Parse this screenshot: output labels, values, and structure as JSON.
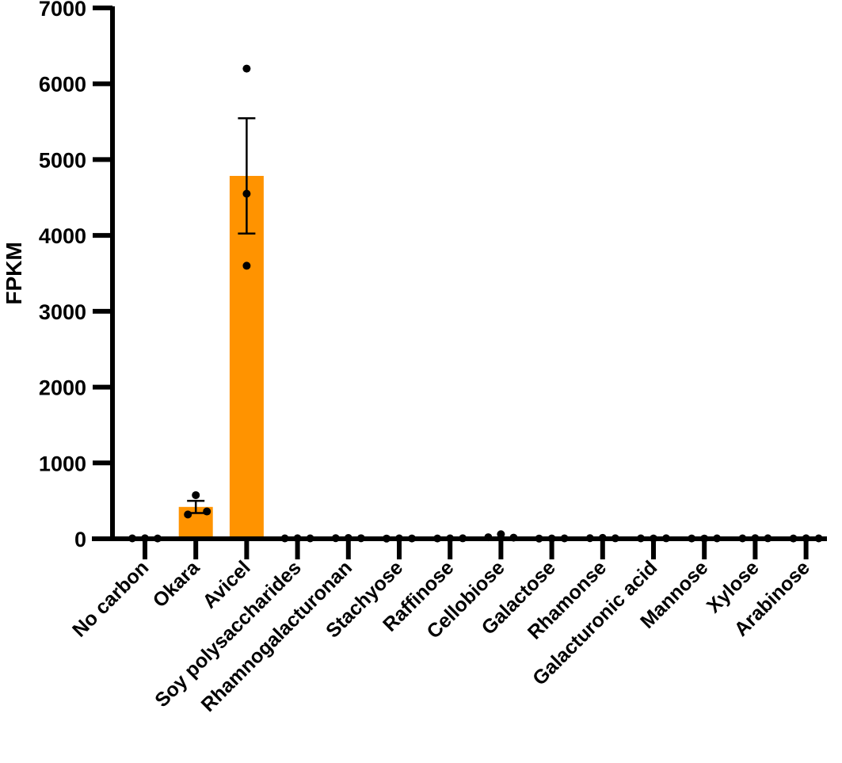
{
  "chart_data": {
    "type": "bar",
    "title": "",
    "xlabel": "",
    "ylabel": "FPKM",
    "ylim": [
      0,
      7000
    ],
    "yticks": [
      0,
      1000,
      2000,
      3000,
      4000,
      5000,
      6000,
      7000
    ],
    "grid": false,
    "legend": null,
    "bar_color": "#FF9300",
    "categories": [
      "No carbon",
      "Okara",
      "Avicel",
      "Soy polysaccharides",
      "Rhamnogalacturonan",
      "Stachyose",
      "Raffinose",
      "Cellobiose",
      "Galactose",
      "Rhamonse",
      "Galacturonic acid",
      "Mannose",
      "Xylose",
      "Arabinose"
    ],
    "values": [
      5,
      420,
      4785,
      5,
      8,
      4,
      5,
      25,
      4,
      8,
      5,
      4,
      6,
      5
    ],
    "error_sem": [
      2,
      80,
      760,
      2,
      3,
      2,
      2,
      10,
      2,
      3,
      2,
      2,
      2,
      2
    ],
    "points": [
      [
        5,
        6,
        4
      ],
      [
        575,
        320,
        360
      ],
      [
        6200,
        4550,
        3600
      ],
      [
        5,
        6,
        5
      ],
      [
        8,
        10,
        7
      ],
      [
        3,
        5,
        4
      ],
      [
        4,
        5,
        6
      ],
      [
        20,
        60,
        15
      ],
      [
        3,
        4,
        5
      ],
      [
        8,
        12,
        6
      ],
      [
        5,
        4,
        6
      ],
      [
        4,
        3,
        5
      ],
      [
        5,
        8,
        6
      ],
      [
        4,
        6,
        5
      ]
    ]
  },
  "axis": {
    "ylabel": "FPKM",
    "ytick_labels": [
      "0",
      "1000",
      "2000",
      "3000",
      "4000",
      "5000",
      "6000",
      "7000"
    ]
  }
}
